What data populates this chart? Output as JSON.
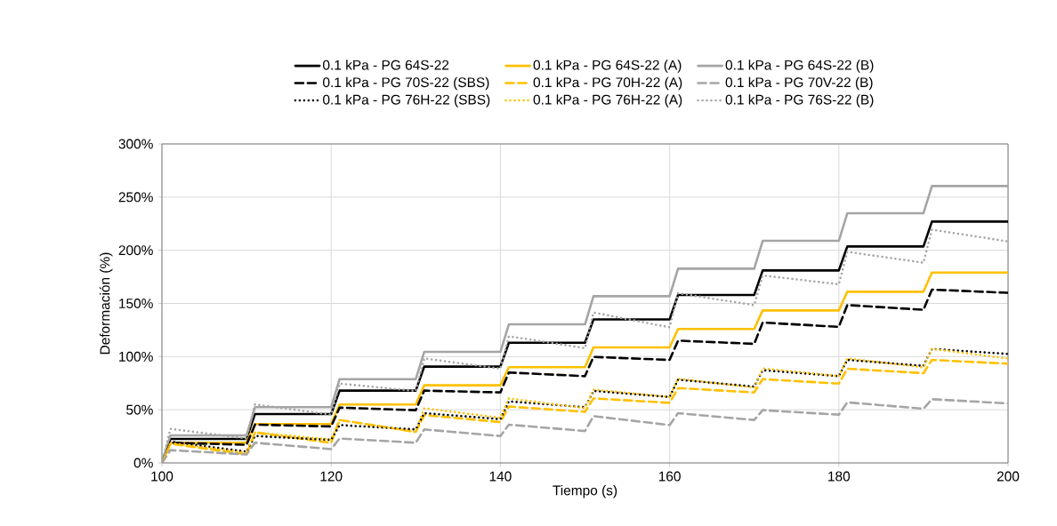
{
  "chart_data": {
    "type": "line",
    "xlabel": "Tiempo (s)",
    "ylabel": "Deformación (%)",
    "x": [
      100,
      101,
      110,
      111,
      120,
      121,
      130,
      131,
      140,
      141,
      150,
      151,
      160,
      161,
      170,
      171,
      180,
      181,
      190,
      191,
      200
    ],
    "xlim": [
      100,
      200
    ],
    "xticks": [
      100,
      120,
      140,
      160,
      180,
      200
    ],
    "ylim": [
      0,
      300
    ],
    "yticks": [
      {
        "value": 0,
        "label": "0%"
      },
      {
        "value": 50,
        "label": "50%"
      },
      {
        "value": 100,
        "label": "100%"
      },
      {
        "value": 150,
        "label": "150%"
      },
      {
        "value": 200,
        "label": "200%"
      },
      {
        "value": 250,
        "label": "250%"
      },
      {
        "value": 300,
        "label": "300%"
      }
    ],
    "grid": true,
    "legend": "top",
    "marker": "none",
    "series": [
      {
        "name": "0.1 kPa - PG 64S-22",
        "color": "#000000",
        "line_style": "solid",
        "values": [
          0,
          22.6,
          22.6,
          46,
          46,
          68,
          68,
          90.6,
          90.6,
          113,
          113,
          135,
          135,
          158,
          158,
          181,
          181,
          203.6,
          203.6,
          227,
          227
        ]
      },
      {
        "name": "0.1 kPa - PG 64S-22 (A)",
        "color": "#ffc000",
        "line_style": "solid",
        "values": [
          0,
          19,
          19,
          36.5,
          36.5,
          54.9,
          54.9,
          73,
          73,
          90,
          90,
          108.6,
          108.6,
          126,
          126,
          143.4,
          143.4,
          161,
          161,
          179,
          179
        ]
      },
      {
        "name": "0.1 kPa - PG 64S-22 (B)",
        "color": "#a5a5a5",
        "line_style": "solid",
        "values": [
          0,
          25.9,
          25.9,
          52.4,
          52.4,
          78.8,
          78.8,
          104.4,
          104.4,
          130.3,
          130.3,
          156.8,
          156.8,
          182.7,
          182.7,
          208.9,
          208.9,
          234.8,
          234.8,
          260.4,
          260.4
        ]
      },
      {
        "name": "0.1 kPa - PG 70S-22 (SBS)",
        "color": "#000000",
        "line_style": "dashed",
        "values": [
          0,
          19,
          17,
          36,
          34.3,
          52,
          49.6,
          68,
          66.3,
          85,
          81.6,
          99.7,
          96.9,
          115,
          112,
          132,
          128,
          148.5,
          144,
          163,
          160
        ]
      },
      {
        "name": "0.1 kPa - PG 70H-22 (A)",
        "color": "#ffc000",
        "line_style": "dashed",
        "values": [
          0,
          18,
          8,
          28.7,
          18.9,
          40.4,
          29.2,
          45,
          38.4,
          53,
          48,
          60.7,
          56.5,
          70.4,
          66.3,
          78.8,
          74.6,
          88.6,
          84.4,
          96.9,
          93.3
        ]
      },
      {
        "name": "0.1 kPa - PG 70V-22 (B)",
        "color": "#a5a5a5",
        "line_style": "dashed",
        "values": [
          0,
          12,
          8,
          19,
          13,
          23,
          19,
          31.5,
          25.3,
          36,
          30,
          44,
          35.6,
          46.8,
          40.4,
          49.6,
          45.4,
          57,
          51,
          59.9,
          56
        ]
      },
      {
        "name": "0.1 kPa - PG 76H-22 (SBS)",
        "color": "#000000",
        "line_style": "dotted",
        "values": [
          0,
          20,
          10.6,
          25.3,
          21.7,
          35.6,
          31.5,
          46.8,
          41.2,
          57.9,
          52.4,
          67.7,
          62,
          78.3,
          71.8,
          87.2,
          81.6,
          96.9,
          91.3,
          107.2,
          102.5
        ]
      },
      {
        "name": "0.1 kPa - PG 76H-22 (A)",
        "color": "#ffc000",
        "line_style": "dotted",
        "values": [
          0,
          18.8,
          9.8,
          28.7,
          22,
          40.4,
          29,
          51.4,
          42.5,
          60.7,
          51.5,
          69,
          62,
          79.2,
          70.8,
          89,
          81.6,
          98.2,
          89.9,
          107.2,
          98.2
        ]
      },
      {
        "name": "0.1 kPa - PG 76S-22 (B)",
        "color": "#a5a5a5",
        "line_style": "dotted",
        "values": [
          0,
          32,
          23,
          55,
          45.4,
          74.6,
          67.7,
          98.3,
          88.6,
          119,
          108,
          141.5,
          127.5,
          159.6,
          148.4,
          176.3,
          168,
          198.5,
          188.3,
          219.4,
          208.3
        ]
      }
    ]
  }
}
